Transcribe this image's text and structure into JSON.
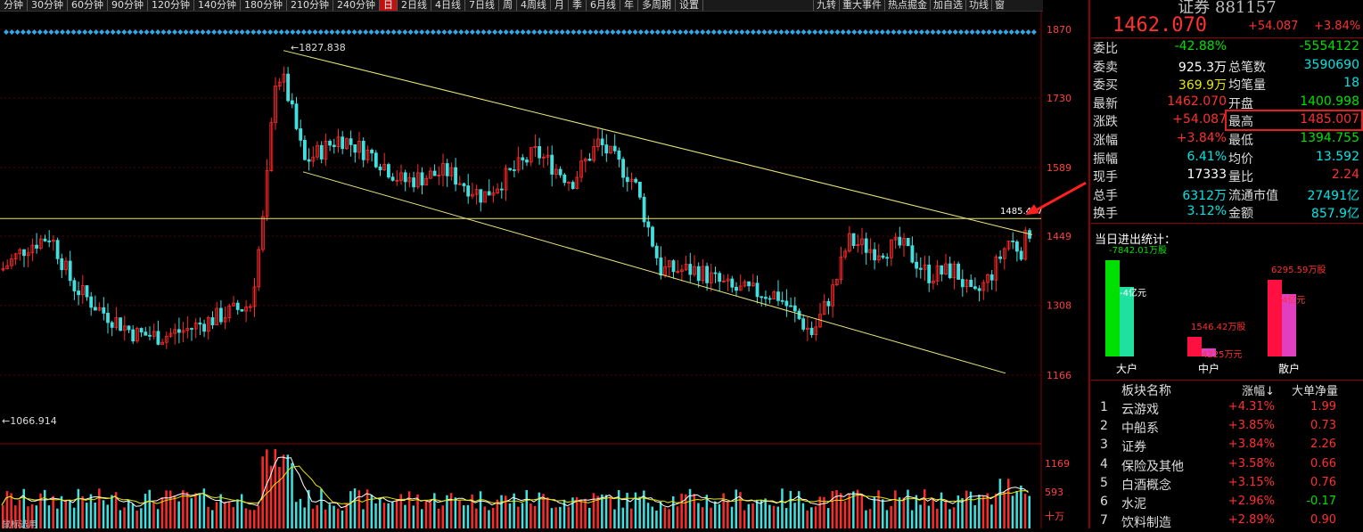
{
  "toolbar": {
    "periods": [
      "分钟",
      "30分钟",
      "60分钟",
      "90分钟",
      "120分钟",
      "140分钟",
      "180分钟",
      "210分钟",
      "240分钟",
      "日",
      "2日线",
      "4日线",
      "7日线",
      "周",
      "4周线",
      "月",
      "季",
      "6月线",
      "年",
      "多周期",
      "设置"
    ],
    "active_period": "日",
    "tools": [
      "九转",
      "重大事件",
      "热点掘金",
      "加自选",
      "功线",
      "窗"
    ]
  },
  "chart": {
    "price_ticks": [
      "1870",
      "1730",
      "1589",
      "1449",
      "1308",
      "1166"
    ],
    "high_label": "1827.838",
    "low_label": "1066.914",
    "hline_label": "1485.477",
    "volume_ticks": [
      "1169",
      "593",
      "十万"
    ],
    "indicator_label": "鼠标选用",
    "up_color": "#ff2a2a",
    "down_color": "#40e0e0",
    "line_color": "#e6e67a"
  },
  "quote": {
    "title": "证券 881157",
    "price": "1462.070",
    "change": "+54.087",
    "change_pct": "+3.84%",
    "rows": [
      {
        "l1": "委比",
        "v1": "-42.88%",
        "c1": "green",
        "l2": "",
        "v2": "-5554122",
        "c2": "green"
      },
      {
        "l1": "委卖",
        "v1": "925.3万",
        "c1": "white",
        "l2": "总笔数",
        "v2": "3590690",
        "c2": "cyan"
      },
      {
        "l1": "委买",
        "v1": "369.9万",
        "c1": "yellow",
        "l2": "均笔量",
        "v2": "18",
        "c2": "cyan"
      },
      {
        "l1": "最新",
        "v1": "1462.070",
        "c1": "red",
        "l2": "开盘",
        "v2": "1400.998",
        "c2": "green"
      },
      {
        "l1": "涨跌",
        "v1": "+54.087",
        "c1": "red",
        "l2": "最高",
        "v2": "1485.007",
        "c2": "red"
      },
      {
        "l1": "涨幅",
        "v1": "+3.84%",
        "c1": "red",
        "l2": "最低",
        "v2": "1394.755",
        "c2": "green"
      },
      {
        "l1": "振幅",
        "v1": "6.41%",
        "c1": "cyan",
        "l2": "均价",
        "v2": "13.592",
        "c2": "cyan"
      },
      {
        "l1": "现手",
        "v1": "17333",
        "c1": "white",
        "l2": "量比",
        "v2": "2.24",
        "c2": "red"
      },
      {
        "l1": "总手",
        "v1": "6312万",
        "c1": "cyan",
        "l2": "流通市值",
        "v2": "27491亿",
        "c2": "cyan"
      },
      {
        "l1": "换手",
        "v1": "3.12%",
        "c1": "cyan",
        "l2": "金额",
        "v2": "857.9亿",
        "c2": "cyan"
      }
    ]
  },
  "flow": {
    "title": "当日进出统计：",
    "groups": [
      {
        "name": "大户",
        "top_label": "-7842.01万股",
        "side_label": "-4亿元",
        "in_color": "#00e000",
        "out_color": "#20e0a0"
      },
      {
        "name": "中户",
        "top_label": "1546.42万股",
        "side_label": "4225万元",
        "in_color": "#ff1040",
        "out_color": "#e040c0"
      },
      {
        "name": "散户",
        "top_label": "6295.59万股",
        "side_label": "4亿元",
        "in_color": "#ff1040",
        "out_color": "#e040c0"
      }
    ]
  },
  "sectors": {
    "headers": [
      "板块名称",
      "涨幅↓",
      "大单净量"
    ],
    "rows": [
      {
        "n": "1",
        "name": "云游戏",
        "chg": "+4.31%",
        "net": "1.99",
        "net_color": "red"
      },
      {
        "n": "2",
        "name": "中船系",
        "chg": "+3.85%",
        "net": "0.73",
        "net_color": "red"
      },
      {
        "n": "3",
        "name": "证券",
        "chg": "+3.84%",
        "net": "2.26",
        "net_color": "red"
      },
      {
        "n": "4",
        "name": "保险及其他",
        "chg": "+3.58%",
        "net": "0.66",
        "net_color": "red"
      },
      {
        "n": "5",
        "name": "白酒概念",
        "chg": "+3.15%",
        "net": "0.76",
        "net_color": "red"
      },
      {
        "n": "6",
        "name": "水泥",
        "chg": "+2.96%",
        "net": "-0.17",
        "net_color": "green"
      },
      {
        "n": "7",
        "name": "饮料制造",
        "chg": "+2.89%",
        "net": "0.90",
        "net_color": "red"
      }
    ]
  }
}
